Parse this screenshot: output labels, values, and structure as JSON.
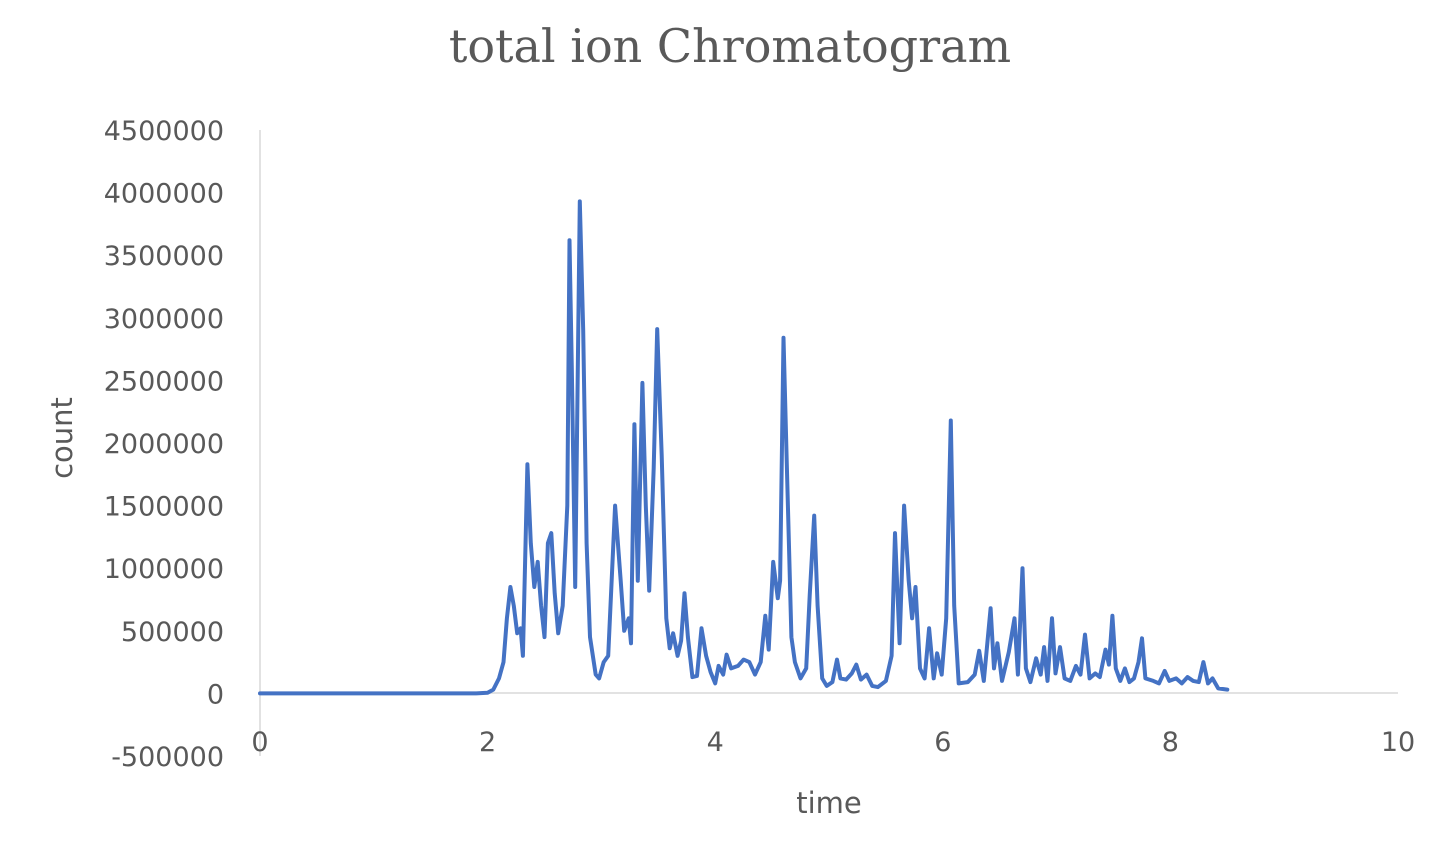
{
  "chart_data": {
    "type": "line",
    "title": "total ion Chromatogram",
    "xlabel": "time",
    "ylabel": "count",
    "xlim": [
      0,
      10
    ],
    "ylim": [
      -500000,
      4500000
    ],
    "x_ticks": [
      "0",
      "2",
      "4",
      "6",
      "8",
      "10"
    ],
    "y_ticks": [
      "4500000",
      "4000000",
      "3500000",
      "3000000",
      "2500000",
      "2000000",
      "1500000",
      "1000000",
      "500000",
      "0",
      "-500000"
    ],
    "grid": false,
    "legend": "none",
    "series_color": "#4472C4",
    "series": [
      {
        "points": [
          [
            0,
            0
          ],
          [
            0.5,
            0
          ],
          [
            1.0,
            0
          ],
          [
            1.5,
            0
          ],
          [
            1.9,
            0
          ],
          [
            2.0,
            5000
          ],
          [
            2.05,
            30000
          ],
          [
            2.1,
            120000
          ],
          [
            2.14,
            250000
          ],
          [
            2.17,
            600000
          ],
          [
            2.2,
            850000
          ],
          [
            2.23,
            700000
          ],
          [
            2.26,
            480000
          ],
          [
            2.29,
            520000
          ],
          [
            2.31,
            300000
          ],
          [
            2.35,
            1830000
          ],
          [
            2.38,
            1200000
          ],
          [
            2.41,
            850000
          ],
          [
            2.44,
            1050000
          ],
          [
            2.47,
            700000
          ],
          [
            2.5,
            450000
          ],
          [
            2.53,
            1200000
          ],
          [
            2.56,
            1280000
          ],
          [
            2.59,
            800000
          ],
          [
            2.62,
            480000
          ],
          [
            2.66,
            700000
          ],
          [
            2.7,
            1500000
          ],
          [
            2.72,
            3620000
          ],
          [
            2.74,
            2600000
          ],
          [
            2.77,
            850000
          ],
          [
            2.81,
            3930000
          ],
          [
            2.84,
            2900000
          ],
          [
            2.87,
            1200000
          ],
          [
            2.9,
            450000
          ],
          [
            2.95,
            150000
          ],
          [
            2.98,
            120000
          ],
          [
            3.02,
            250000
          ],
          [
            3.06,
            300000
          ],
          [
            3.12,
            1500000
          ],
          [
            3.17,
            900000
          ],
          [
            3.2,
            500000
          ],
          [
            3.24,
            600000
          ],
          [
            3.26,
            400000
          ],
          [
            3.29,
            2150000
          ],
          [
            3.32,
            900000
          ],
          [
            3.36,
            2480000
          ],
          [
            3.39,
            1500000
          ],
          [
            3.42,
            820000
          ],
          [
            3.46,
            1800000
          ],
          [
            3.49,
            2910000
          ],
          [
            3.53,
            1900000
          ],
          [
            3.57,
            600000
          ],
          [
            3.6,
            360000
          ],
          [
            3.63,
            480000
          ],
          [
            3.67,
            300000
          ],
          [
            3.7,
            420000
          ],
          [
            3.73,
            800000
          ],
          [
            3.76,
            450000
          ],
          [
            3.8,
            130000
          ],
          [
            3.84,
            140000
          ],
          [
            3.88,
            520000
          ],
          [
            3.92,
            300000
          ],
          [
            3.96,
            170000
          ],
          [
            4.0,
            80000
          ],
          [
            4.03,
            220000
          ],
          [
            4.07,
            150000
          ],
          [
            4.1,
            310000
          ],
          [
            4.14,
            200000
          ],
          [
            4.2,
            220000
          ],
          [
            4.25,
            270000
          ],
          [
            4.3,
            250000
          ],
          [
            4.35,
            150000
          ],
          [
            4.4,
            250000
          ],
          [
            4.44,
            620000
          ],
          [
            4.47,
            350000
          ],
          [
            4.51,
            1050000
          ],
          [
            4.55,
            760000
          ],
          [
            4.57,
            900000
          ],
          [
            4.6,
            2840000
          ],
          [
            4.63,
            1800000
          ],
          [
            4.67,
            450000
          ],
          [
            4.7,
            250000
          ],
          [
            4.75,
            120000
          ],
          [
            4.8,
            200000
          ],
          [
            4.83,
            780000
          ],
          [
            4.87,
            1420000
          ],
          [
            4.9,
            700000
          ],
          [
            4.94,
            120000
          ],
          [
            4.98,
            60000
          ],
          [
            5.03,
            90000
          ],
          [
            5.07,
            270000
          ],
          [
            5.1,
            120000
          ],
          [
            5.15,
            110000
          ],
          [
            5.2,
            160000
          ],
          [
            5.24,
            230000
          ],
          [
            5.28,
            110000
          ],
          [
            5.33,
            150000
          ],
          [
            5.38,
            60000
          ],
          [
            5.43,
            50000
          ],
          [
            5.5,
            100000
          ],
          [
            5.55,
            300000
          ],
          [
            5.58,
            1280000
          ],
          [
            5.62,
            400000
          ],
          [
            5.66,
            1500000
          ],
          [
            5.7,
            900000
          ],
          [
            5.73,
            600000
          ],
          [
            5.76,
            850000
          ],
          [
            5.8,
            200000
          ],
          [
            5.84,
            120000
          ],
          [
            5.88,
            520000
          ],
          [
            5.92,
            120000
          ],
          [
            5.95,
            320000
          ],
          [
            5.99,
            150000
          ],
          [
            6.03,
            600000
          ],
          [
            6.07,
            2180000
          ],
          [
            6.1,
            700000
          ],
          [
            6.14,
            80000
          ],
          [
            6.22,
            90000
          ],
          [
            6.28,
            150000
          ],
          [
            6.32,
            340000
          ],
          [
            6.36,
            100000
          ],
          [
            6.42,
            680000
          ],
          [
            6.45,
            200000
          ],
          [
            6.48,
            400000
          ],
          [
            6.52,
            100000
          ],
          [
            6.58,
            330000
          ],
          [
            6.63,
            600000
          ],
          [
            6.66,
            150000
          ],
          [
            6.7,
            1000000
          ],
          [
            6.73,
            200000
          ],
          [
            6.77,
            90000
          ],
          [
            6.82,
            280000
          ],
          [
            6.86,
            150000
          ],
          [
            6.89,
            370000
          ],
          [
            6.92,
            100000
          ],
          [
            6.96,
            600000
          ],
          [
            6.99,
            160000
          ],
          [
            7.03,
            370000
          ],
          [
            7.07,
            120000
          ],
          [
            7.12,
            100000
          ],
          [
            7.17,
            220000
          ],
          [
            7.21,
            150000
          ],
          [
            7.25,
            470000
          ],
          [
            7.29,
            120000
          ],
          [
            7.34,
            160000
          ],
          [
            7.38,
            130000
          ],
          [
            7.43,
            350000
          ],
          [
            7.46,
            230000
          ],
          [
            7.49,
            620000
          ],
          [
            7.52,
            200000
          ],
          [
            7.56,
            100000
          ],
          [
            7.6,
            200000
          ],
          [
            7.64,
            90000
          ],
          [
            7.68,
            120000
          ],
          [
            7.72,
            250000
          ],
          [
            7.75,
            440000
          ],
          [
            7.78,
            120000
          ],
          [
            7.85,
            100000
          ],
          [
            7.9,
            80000
          ],
          [
            7.95,
            180000
          ],
          [
            7.99,
            100000
          ],
          [
            8.05,
            120000
          ],
          [
            8.1,
            80000
          ],
          [
            8.15,
            130000
          ],
          [
            8.2,
            100000
          ],
          [
            8.25,
            90000
          ],
          [
            8.29,
            250000
          ],
          [
            8.33,
            80000
          ],
          [
            8.37,
            120000
          ],
          [
            8.42,
            40000
          ],
          [
            8.5,
            30000
          ]
        ]
      }
    ]
  }
}
